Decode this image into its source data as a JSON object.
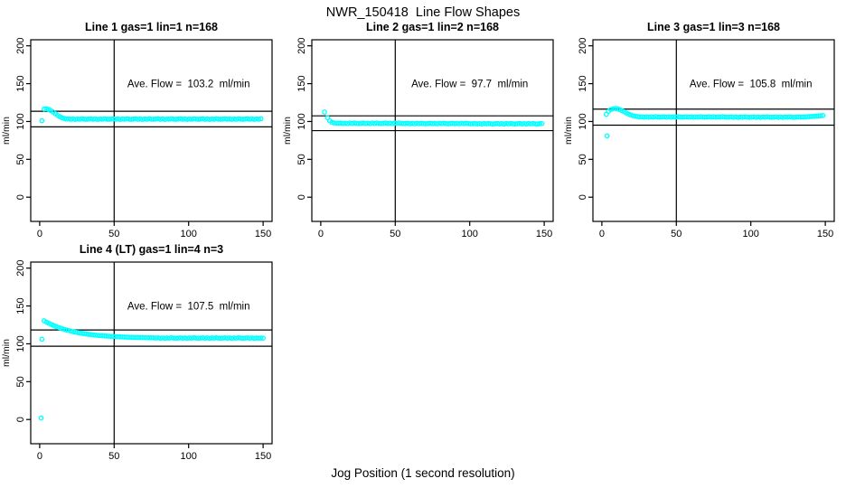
{
  "title": "NWR_150418  Line Flow Shapes",
  "xlabel": "Jog Position (1 second resolution)",
  "chart_data": {
    "type": "scatter",
    "point_color": "#00FFFF",
    "axis_color": "#000000",
    "ylabel": "ml/min",
    "x_ticks": [
      0,
      50,
      100,
      150
    ],
    "y_ticks": [
      0,
      50,
      100,
      150,
      200
    ],
    "x_range": [
      -6,
      156
    ],
    "y_range": [
      -32,
      208
    ],
    "grid": false,
    "legend": "none",
    "panels": [
      {
        "title": "Line 1 gas=1 lin=1 n=168",
        "annotation": "Ave. Flow =  103.2  ml/min",
        "ave_flow": 103.2,
        "hline_upper": 113.5,
        "hline_lower": 92.9,
        "vline": 50,
        "outliers": [
          [
            1.5,
            101
          ]
        ],
        "series": {
          "x0": 3,
          "dx": 1.5,
          "y": [
            116.5,
            116.8,
            116,
            114.5,
            112.5,
            110.3,
            108.2,
            106.4,
            105,
            104,
            103.2,
            103.5,
            102.9,
            103.4,
            102.8,
            103.3,
            103,
            103.6,
            103.1,
            102.9,
            103.2,
            103.5,
            102.9,
            103.4,
            102.8,
            103.3,
            103,
            103.6,
            103.1,
            102.9,
            103.2,
            103.5,
            102.9,
            103.4,
            102.8,
            103.3,
            103,
            103.6,
            103.1,
            102.9,
            103.2,
            103.5,
            102.9,
            103.4,
            102.8,
            103.3,
            103,
            103.6,
            103.1,
            102.9,
            103.2,
            103.5,
            102.9,
            103.4,
            102.8,
            103.3,
            103,
            103.6,
            103.1,
            102.9,
            103.2,
            103.5,
            102.9,
            103.4,
            102.8,
            103.3,
            103,
            103.6,
            103.1,
            102.9,
            103.2,
            103.5,
            102.9,
            103.4,
            102.8,
            103.3,
            103,
            103.6,
            103.1,
            102.9,
            103.2,
            103.5,
            102.9,
            103.4,
            102.8,
            103.3,
            103,
            103.6,
            103.1,
            102.9,
            103.2,
            103.5,
            102.9,
            103.4,
            102.8,
            103.3,
            103,
            103.6
          ]
        }
      },
      {
        "title": "Line 2 gas=1 lin=2 n=168",
        "annotation": "Ave. Flow =  97.7  ml/min",
        "ave_flow": 97.7,
        "hline_upper": 107.5,
        "hline_lower": 87.9,
        "vline": 50,
        "outliers": [
          [
            2.5,
            112.5
          ]
        ],
        "series": {
          "x0": 4.5,
          "dx": 1.5,
          "y": [
            105,
            100.8,
            98.8,
            98.1,
            97.8,
            97.7,
            98,
            97.4,
            97.9,
            97.3,
            98.1,
            97.5,
            98,
            97.6,
            97.3,
            97.7,
            98,
            97.4,
            97.9,
            97.3,
            98.1,
            97.5,
            98,
            97.6,
            97.3,
            97.7,
            98,
            97.4,
            97.9,
            97.3,
            98.1,
            97.5,
            98,
            97.6,
            97.3,
            97.4,
            97.7,
            97.1,
            97.6,
            97,
            97.8,
            97.2,
            97.7,
            97.3,
            97,
            97.4,
            97.7,
            97.1,
            97.6,
            97,
            97.8,
            97.2,
            97.7,
            97.3,
            97,
            97.4,
            97.7,
            97.1,
            97.6,
            97,
            97.8,
            97.2,
            97.7,
            97.3,
            97,
            97.1,
            97.4,
            96.8,
            97.3,
            96.7,
            97.5,
            96.9,
            97.4,
            97,
            96.7,
            97.1,
            97.4,
            96.8,
            97.3,
            96.7,
            97.5,
            96.9,
            97.4,
            97,
            96.7,
            97.1,
            97.4,
            96.8,
            97.3,
            96.7,
            97.5,
            96.9,
            97.4,
            97,
            96.7,
            97.1,
            97.3
          ]
        }
      },
      {
        "title": "Line 3 gas=1 lin=3 n=168",
        "annotation": "Ave. Flow =  105.8  ml/min",
        "ave_flow": 105.8,
        "hline_upper": 116.4,
        "hline_lower": 95.2,
        "vline": 50,
        "outliers": [
          [
            3.5,
            81
          ]
        ],
        "series": {
          "x0": 3,
          "dx": 1.5,
          "y": [
            109.5,
            113.5,
            115.8,
            116.9,
            117.2,
            116.8,
            115.8,
            114.4,
            112.8,
            111.2,
            109.8,
            108.6,
            107.6,
            107,
            106.5,
            106,
            106.3,
            105.7,
            106.2,
            105.6,
            106.1,
            105.8,
            106.4,
            105.9,
            105.7,
            106,
            106.3,
            105.7,
            106.2,
            105.6,
            106.1,
            105.8,
            106.4,
            105.9,
            105.7,
            106,
            106.3,
            105.7,
            106.2,
            105.6,
            106.1,
            105.8,
            106.4,
            105.9,
            105.7,
            106,
            106.3,
            105.7,
            106.2,
            105.6,
            106.1,
            105.8,
            106.4,
            105.9,
            105.7,
            105.8,
            106.1,
            105.5,
            106,
            105.4,
            105.9,
            105.6,
            106.2,
            105.7,
            105.5,
            105.8,
            106.1,
            105.5,
            106,
            105.4,
            105.9,
            105.6,
            106.2,
            105.7,
            105.5,
            105.8,
            106.1,
            105.5,
            106,
            105.4,
            105.9,
            105.6,
            106.2,
            105.7,
            105.5,
            105.8,
            106.1,
            105.8,
            105.9,
            106.1,
            106.3,
            106.5,
            106.7,
            106.9,
            107.1,
            107.4,
            107.6,
            107.9
          ]
        }
      },
      {
        "title": "Line 4 (LT) gas=1 lin=4 n=3",
        "annotation": "Ave. Flow =  107.5  ml/min",
        "ave_flow": 107.5,
        "hline_upper": 118.3,
        "hline_lower": 96.8,
        "vline": 50,
        "outliers": [
          [
            1,
            2
          ],
          [
            1.5,
            106
          ]
        ],
        "series": {
          "x0": 3,
          "dx": 1.5,
          "y": [
            130.4,
            128.7,
            127.2,
            125.8,
            124.4,
            123.2,
            122.1,
            121,
            120,
            119.1,
            118.3,
            117.5,
            116.8,
            116.1,
            115.4,
            114.9,
            114.3,
            113.8,
            113.4,
            112.9,
            112.5,
            112.2,
            111.8,
            111.5,
            111.2,
            110.9,
            110.7,
            110.4,
            110.2,
            110,
            109.8,
            109.6,
            109.5,
            109.3,
            109.2,
            109.1,
            108.9,
            108.8,
            108.7,
            108.6,
            108.5,
            108.4,
            108.3,
            108.25,
            108.2,
            108.1,
            108.05,
            108,
            107.95,
            107.9,
            107.6,
            107.9,
            107.4,
            107.8,
            107.3,
            107.7,
            107.5,
            108,
            107.6,
            107.4,
            107.6,
            107.9,
            107.4,
            107.8,
            107.3,
            107.7,
            107.5,
            108,
            107.6,
            107.4,
            107.6,
            107.9,
            107.4,
            107.8,
            107.3,
            107.7,
            107.5,
            108,
            107.6,
            107.4,
            107.6,
            107.9,
            107.4,
            107.8,
            107.3,
            107.7,
            107.5,
            108,
            107.6,
            107.4,
            107.6,
            107.9,
            107.4,
            107.8,
            107.3,
            107.7,
            107.5,
            107.6,
            107.5
          ]
        }
      }
    ]
  }
}
